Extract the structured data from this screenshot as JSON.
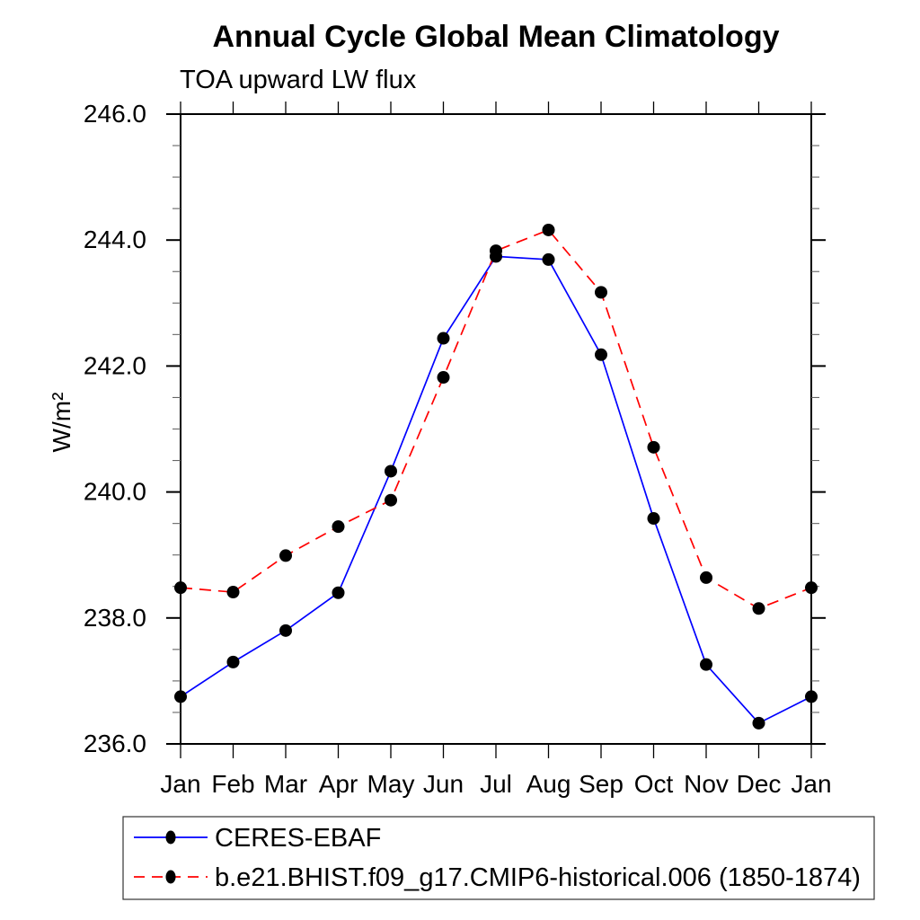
{
  "title": "Annual Cycle Global Mean Climatology",
  "subtitle": "TOA upward LW flux",
  "ylabel": "W/m²",
  "legend": {
    "entries": [
      {
        "label": "CERES-EBAF",
        "color": "#0000ff",
        "style": "solid",
        "marker": "black-dot"
      },
      {
        "label": "b.e21.BHIST.f09_g17.CMIP6-historical.006 (1850-1874)",
        "color": "#ff0000",
        "style": "dashed",
        "marker": "black-dot"
      }
    ]
  },
  "colors": {
    "obs_line": "#0000ff",
    "model_line": "#ff0000",
    "marker": "#000000",
    "axis": "#000000",
    "minor_tick": "#666666"
  },
  "chart_data": {
    "type": "line",
    "title": "Annual Cycle Global Mean Climatology",
    "subtitle": "TOA upward LW flux",
    "xlabel": "",
    "ylabel": "W/m²",
    "categories": [
      "Jan",
      "Feb",
      "Mar",
      "Apr",
      "May",
      "Jun",
      "Jul",
      "Aug",
      "Sep",
      "Oct",
      "Nov",
      "Dec",
      "Jan"
    ],
    "series": [
      {
        "name": "CERES-EBAF",
        "color": "#0000ff",
        "line_style": "solid",
        "marker": "circle",
        "marker_color": "#000000",
        "values": [
          236.75,
          237.3,
          237.8,
          238.4,
          240.33,
          242.44,
          243.74,
          243.69,
          242.18,
          239.58,
          237.26,
          236.33,
          236.75
        ]
      },
      {
        "name": "b.e21.BHIST.f09_g17.CMIP6-historical.006 (1850-1874)",
        "color": "#ff0000",
        "line_style": "dashed",
        "marker": "circle",
        "marker_color": "#000000",
        "values": [
          238.48,
          238.41,
          238.99,
          239.45,
          239.87,
          241.82,
          243.83,
          244.16,
          243.17,
          240.71,
          238.64,
          238.15,
          238.48
        ]
      }
    ],
    "ylim": [
      236.0,
      246.0
    ],
    "ytick_major_interval": 2.0,
    "ytick_minor_interval": 0.5,
    "ytick_labels": [
      "236.0",
      "238.0",
      "240.0",
      "242.0",
      "244.0",
      "246.0"
    ],
    "grid": false,
    "legend_position": "bottom-left"
  }
}
